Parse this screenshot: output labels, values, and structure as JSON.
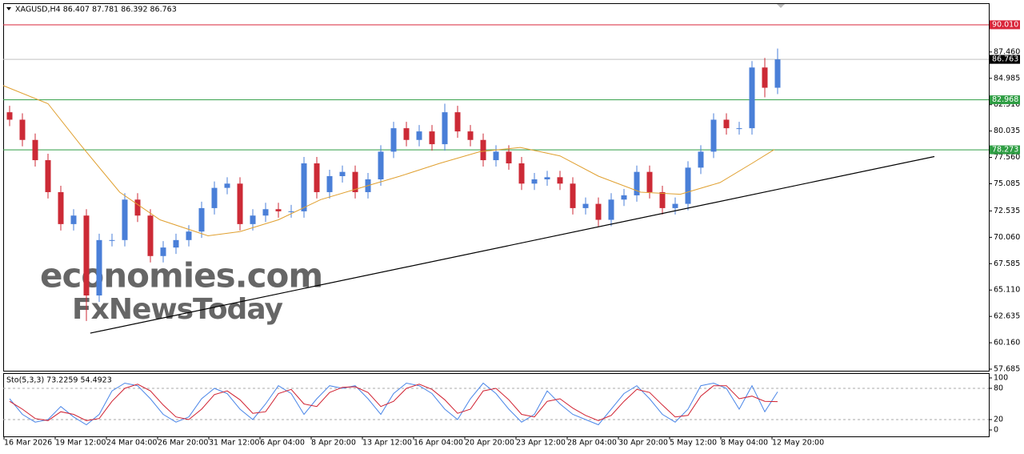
{
  "chart_data": [
    {
      "type": "candlestick",
      "title": "XAGUSD,H4  86.407 87.781 86.392 86.763",
      "xlim": [
        -0.5,
        76.5
      ],
      "xticks": [
        {
          "value": -0.5,
          "label": "16 Mar 2026"
        },
        {
          "value": 3.5,
          "label": "19 Mar 12:00"
        },
        {
          "value": 7.5,
          "label": "24 Mar 04:00"
        },
        {
          "value": 11.5,
          "label": "26 Mar 20:00"
        },
        {
          "value": 15.5,
          "label": "31 Mar 12:00"
        },
        {
          "value": 19.5,
          "label": "6 Apr 04:00"
        },
        {
          "value": 23.5,
          "label": "8 Apr 20:00"
        },
        {
          "value": 27.5,
          "label": "13 Apr 12:00"
        },
        {
          "value": 31.5,
          "label": "16 Apr 04:00"
        },
        {
          "value": 35.5,
          "label": "20 Apr 20:00"
        },
        {
          "value": 39.5,
          "label": "23 Apr 12:00"
        },
        {
          "value": 43.5,
          "label": "28 Apr 04:00"
        },
        {
          "value": 47.5,
          "label": "30 Apr 20:00"
        },
        {
          "value": 51.5,
          "label": "5 May 12:00"
        },
        {
          "value": 55.5,
          "label": "8 May 04:00"
        },
        {
          "value": 59.5,
          "label": "12 May 20:00"
        }
      ],
      "ylim": [
        57.535,
        92.035
      ],
      "yticks": [
        {
          "value": 87.46,
          "label": "87.460"
        },
        84.985,
        {
          "value": 82.51,
          "label": "82.510"
        },
        80.035,
        {
          "value": 77.56,
          "label": "77.560"
        },
        75.085,
        72.535,
        {
          "value": 70.06,
          "label": "70.060"
        },
        67.585,
        {
          "value": 65.11,
          "label": "65.110"
        },
        62.635,
        {
          "value": 60.16,
          "label": "60.160"
        },
        57.685
      ],
      "up_color": "#4a7fd8",
      "down_color": "#cc2a36",
      "open": [
        81.8,
        81.1,
        79.2,
        77.3,
        74.3,
        71.3,
        72.1,
        64.6,
        69.8,
        69.8,
        73.6,
        72.1,
        68.3,
        69.1,
        69.8,
        70.6,
        72.8,
        74.7,
        75.1,
        71.3,
        72.1,
        72.7,
        72.5,
        72.5,
        77.0,
        74.3,
        75.8,
        76.2,
        74.3,
        75.5,
        78.1,
        80.3,
        79.2,
        80.0,
        78.8,
        81.8,
        80.0,
        79.2,
        77.3,
        78.1,
        77.0,
        75.1,
        75.5,
        75.7,
        75.1,
        72.8,
        73.2,
        71.7,
        73.6,
        74.0,
        76.2,
        74.3,
        72.8,
        73.2,
        76.6,
        78.1,
        81.1,
        80.3,
        80.3,
        86.0,
        84.1
      ],
      "high": [
        82.4,
        81.7,
        79.8,
        77.9,
        74.9,
        72.7,
        72.7,
        70.4,
        70.4,
        74.2,
        74.2,
        72.7,
        69.7,
        70.4,
        71.2,
        73.4,
        75.3,
        75.7,
        75.7,
        72.7,
        73.3,
        73.3,
        73.1,
        77.6,
        77.6,
        76.4,
        76.8,
        76.8,
        76.1,
        78.7,
        80.9,
        80.9,
        80.6,
        80.6,
        82.6,
        82.4,
        80.6,
        79.8,
        78.7,
        78.7,
        77.6,
        76.1,
        76.3,
        76.3,
        75.7,
        73.8,
        73.8,
        74.2,
        74.6,
        76.8,
        76.8,
        74.9,
        73.8,
        77.2,
        78.7,
        81.7,
        81.7,
        80.9,
        86.6,
        86.9,
        87.781
      ],
      "low": [
        80.5,
        78.6,
        76.7,
        73.7,
        70.7,
        70.7,
        62.2,
        64.0,
        69.2,
        69.2,
        71.5,
        67.7,
        67.7,
        68.5,
        69.2,
        70.0,
        72.2,
        74.1,
        70.7,
        70.7,
        71.5,
        71.9,
        71.9,
        71.9,
        73.7,
        73.7,
        75.2,
        73.7,
        73.7,
        74.9,
        77.5,
        78.6,
        78.6,
        78.2,
        78.2,
        79.4,
        78.6,
        76.7,
        76.7,
        76.4,
        74.5,
        74.5,
        74.9,
        74.5,
        72.2,
        72.2,
        71.1,
        71.1,
        73.0,
        73.4,
        73.7,
        72.2,
        72.2,
        72.6,
        76.0,
        77.5,
        79.7,
        79.7,
        79.7,
        83.2,
        83.5
      ],
      "close": [
        81.1,
        79.2,
        77.3,
        74.3,
        71.3,
        72.1,
        64.6,
        69.8,
        69.8,
        73.6,
        72.1,
        68.3,
        69.1,
        69.8,
        70.6,
        72.8,
        74.7,
        75.1,
        71.3,
        72.1,
        72.7,
        72.5,
        72.5,
        77.0,
        74.3,
        75.8,
        76.2,
        74.3,
        75.5,
        78.1,
        80.3,
        79.2,
        80.0,
        78.8,
        81.8,
        80.0,
        79.2,
        77.3,
        78.1,
        77.0,
        75.1,
        75.5,
        75.7,
        75.1,
        72.8,
        73.2,
        71.7,
        73.6,
        74.0,
        76.2,
        74.3,
        72.8,
        73.2,
        76.6,
        78.1,
        81.1,
        80.3,
        80.3,
        86.0,
        84.1,
        86.763
      ],
      "moving_average": {
        "color": "#e0a030",
        "x": [
          -0.5,
          3,
          5.5,
          8.6,
          11.75,
          15.5,
          18,
          21,
          24.3,
          27.4,
          30.5,
          33.6,
          36.75,
          39.9,
          43,
          46,
          49.3,
          52.4,
          55.5,
          58,
          59.75
        ],
        "values": [
          84.3,
          82.6,
          78.8,
          74.3,
          71.7,
          70.2,
          70.6,
          71.7,
          73.6,
          74.7,
          75.8,
          77.0,
          78.1,
          78.5,
          77.7,
          75.8,
          74.3,
          74.1,
          75.2,
          77.0,
          78.3
        ]
      },
      "levels": [
        {
          "value": 90.01,
          "label": "90.010",
          "color": "#d9263a",
          "box": "#d9263a"
        },
        {
          "value": 86.763,
          "color": "#c0c0c0",
          "box": "#000000"
        },
        {
          "value": 82.968,
          "color": "#2f9e44",
          "box": "#2f9e44"
        },
        {
          "value": 78.273,
          "color": "#2f9e44",
          "box": "#2f9e44"
        }
      ],
      "trendline": {
        "color": "#000000",
        "x": [
          6.3,
          72.25
        ],
        "y": [
          61.06,
          77.64
        ]
      },
      "watermark": [
        {
          "text": "economies.com",
          "color": "#f3b98a"
        },
        {
          "text": "FxNewsToday",
          "color": "#9a9a9a"
        }
      ]
    },
    {
      "type": "line",
      "title": "Sto(5,3,3) 73.2259 54.4923",
      "xlim": [
        -0.5,
        76.5
      ],
      "ylim": [
        -12.3,
        109.2
      ],
      "yticks": [
        100,
        80,
        20,
        0
      ],
      "dashed_levels": [
        80,
        20
      ],
      "series": [
        {
          "color": "#4a86e8",
          "values": [
            60,
            30,
            15,
            20,
            45,
            25,
            10,
            30,
            75,
            90,
            85,
            60,
            30,
            15,
            25,
            60,
            80,
            70,
            40,
            20,
            50,
            85,
            70,
            30,
            60,
            85,
            80,
            85,
            60,
            30,
            70,
            90,
            85,
            70,
            40,
            20,
            60,
            90,
            70,
            40,
            15,
            30,
            75,
            50,
            30,
            20,
            10,
            40,
            70,
            85,
            60,
            30,
            15,
            40,
            85,
            90,
            80,
            40,
            85,
            35,
            73.2259
          ]
        },
        {
          "color": "#d02030",
          "values": [
            55,
            40,
            22,
            18,
            35,
            30,
            18,
            22,
            55,
            80,
            88,
            75,
            48,
            25,
            20,
            40,
            68,
            75,
            58,
            32,
            35,
            70,
            78,
            50,
            45,
            72,
            82,
            83,
            72,
            45,
            55,
            80,
            88,
            78,
            58,
            32,
            40,
            75,
            80,
            58,
            30,
            25,
            55,
            60,
            42,
            28,
            18,
            28,
            55,
            78,
            72,
            48,
            25,
            28,
            65,
            85,
            85,
            60,
            65,
            55,
            54.4923
          ]
        }
      ]
    }
  ]
}
